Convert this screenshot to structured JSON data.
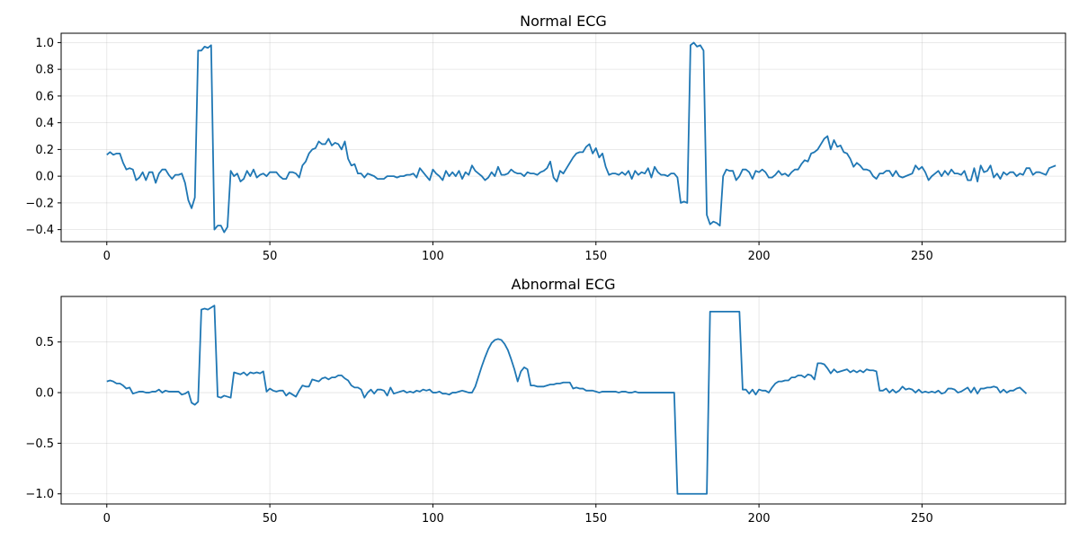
{
  "chart_data": [
    {
      "type": "line",
      "title": "Normal ECG",
      "xlabel": "",
      "ylabel": "",
      "grid": true,
      "xlim": [
        -14,
        294
      ],
      "ylim": [
        -0.49,
        1.07
      ],
      "xticks": [
        0,
        50,
        100,
        150,
        200,
        250
      ],
      "xtick_labels": [
        "0",
        "50",
        "100",
        "150",
        "200",
        "250"
      ],
      "yticks": [
        -0.4,
        -0.2,
        0.0,
        0.2,
        0.4,
        0.6,
        0.8,
        1.0
      ],
      "ytick_labels": [
        "−0.4",
        "−0.2",
        "0.0",
        "0.2",
        "0.4",
        "0.6",
        "0.8",
        "1.0"
      ],
      "series": [
        {
          "color": "#1f77b4",
          "x_start": 0,
          "x_step": 1,
          "values": [
            0.16,
            0.18,
            0.16,
            0.17,
            0.17,
            0.1,
            0.05,
            0.06,
            0.05,
            -0.03,
            -0.01,
            0.03,
            -0.03,
            0.03,
            0.03,
            -0.05,
            0.02,
            0.05,
            0.05,
            0.01,
            -0.02,
            0.01,
            0.01,
            0.02,
            -0.05,
            -0.18,
            -0.24,
            -0.16,
            0.94,
            0.94,
            0.97,
            0.96,
            0.98,
            -0.4,
            -0.37,
            -0.37,
            -0.42,
            -0.38,
            0.04,
            0.0,
            0.02,
            -0.04,
            -0.02,
            0.04,
            0.0,
            0.05,
            -0.01,
            0.01,
            0.02,
            0.0,
            0.03,
            0.03,
            0.03,
            0.0,
            -0.02,
            -0.02,
            0.03,
            0.03,
            0.02,
            -0.01,
            0.08,
            0.11,
            0.17,
            0.2,
            0.21,
            0.26,
            0.24,
            0.24,
            0.28,
            0.23,
            0.25,
            0.24,
            0.2,
            0.26,
            0.13,
            0.08,
            0.09,
            0.02,
            0.02,
            -0.01,
            0.02,
            0.01,
            0.0,
            -0.02,
            -0.02,
            -0.02,
            0.0,
            0.0,
            0.0,
            -0.01,
            0.0,
            0.0,
            0.01,
            0.01,
            0.02,
            -0.01,
            0.06,
            0.03,
            0.0,
            -0.03,
            0.05,
            0.02,
            0.0,
            -0.03,
            0.04,
            0.0,
            0.03,
            0.0,
            0.04,
            -0.02,
            0.03,
            0.01,
            0.08,
            0.04,
            0.02,
            0.0,
            -0.03,
            -0.01,
            0.03,
            0.0,
            0.07,
            0.01,
            0.01,
            0.02,
            0.05,
            0.03,
            0.02,
            0.02,
            0.0,
            0.03,
            0.02,
            0.02,
            0.01,
            0.03,
            0.04,
            0.06,
            0.11,
            -0.01,
            -0.04,
            0.04,
            0.02,
            0.06,
            0.1,
            0.14,
            0.17,
            0.18,
            0.18,
            0.22,
            0.24,
            0.17,
            0.21,
            0.14,
            0.17,
            0.07,
            0.01,
            0.02,
            0.02,
            0.01,
            0.03,
            0.01,
            0.04,
            -0.02,
            0.04,
            0.01,
            0.03,
            0.02,
            0.06,
            -0.01,
            0.07,
            0.03,
            0.01,
            0.01,
            0.0,
            0.02,
            0.02,
            -0.01,
            -0.2,
            -0.19,
            -0.2,
            0.98,
            1.0,
            0.97,
            0.98,
            0.94,
            -0.29,
            -0.36,
            -0.34,
            -0.35,
            -0.37,
            0.0,
            0.05,
            0.04,
            0.04,
            -0.03,
            0.0,
            0.05,
            0.05,
            0.03,
            -0.02,
            0.04,
            0.03,
            0.05,
            0.03,
            -0.01,
            -0.01,
            0.01,
            0.04,
            0.01,
            0.02,
            0.0,
            0.03,
            0.05,
            0.05,
            0.09,
            0.12,
            0.11,
            0.17,
            0.18,
            0.2,
            0.24,
            0.28,
            0.3,
            0.2,
            0.27,
            0.22,
            0.23,
            0.18,
            0.17,
            0.13,
            0.07,
            0.1,
            0.08,
            0.05,
            0.05,
            0.04,
            0.0,
            -0.02,
            0.02,
            0.02,
            0.04,
            0.04,
            0.0,
            0.04,
            0.0,
            -0.01,
            0.0,
            0.01,
            0.02,
            0.08,
            0.05,
            0.07,
            0.03,
            -0.03,
            0.0,
            0.02,
            0.04,
            0.0,
            0.04,
            0.01,
            0.05,
            0.02,
            0.02,
            0.01,
            0.04,
            -0.03,
            -0.03,
            0.06,
            -0.04,
            0.08,
            0.03,
            0.04,
            0.08,
            -0.01,
            0.02,
            -0.02,
            0.03,
            0.01,
            0.03,
            0.03,
            0.0,
            0.02,
            0.01,
            0.06,
            0.06,
            0.01,
            0.03,
            0.03,
            0.02,
            0.01,
            0.06,
            0.07,
            0.08
          ]
        }
      ]
    },
    {
      "type": "line",
      "title": "Abnormal ECG",
      "xlabel": "",
      "ylabel": "",
      "grid": true,
      "xlim": [
        -14,
        294
      ],
      "ylim": [
        -1.1,
        0.95
      ],
      "xticks": [
        0,
        50,
        100,
        150,
        200,
        250
      ],
      "xtick_labels": [
        "0",
        "50",
        "100",
        "150",
        "200",
        "250"
      ],
      "yticks": [
        -1.0,
        -0.5,
        0.0,
        0.5
      ],
      "ytick_labels": [
        "−1.0",
        "−0.5",
        "0.0",
        "0.5"
      ],
      "series": [
        {
          "color": "#1f77b4",
          "x_start": 0,
          "x_step": 1,
          "values": [
            0.11,
            0.12,
            0.11,
            0.09,
            0.09,
            0.07,
            0.04,
            0.05,
            -0.01,
            0.0,
            0.01,
            0.01,
            0.0,
            0.0,
            0.01,
            0.01,
            0.03,
            0.0,
            0.02,
            0.01,
            0.01,
            0.01,
            0.01,
            -0.02,
            -0.01,
            0.01,
            -0.1,
            -0.12,
            -0.09,
            0.82,
            0.83,
            0.82,
            0.84,
            0.86,
            -0.04,
            -0.05,
            -0.03,
            -0.04,
            -0.05,
            0.2,
            0.19,
            0.18,
            0.2,
            0.17,
            0.2,
            0.19,
            0.2,
            0.19,
            0.21,
            0.01,
            0.04,
            0.02,
            0.01,
            0.02,
            0.02,
            -0.03,
            0.0,
            -0.02,
            -0.04,
            0.02,
            0.07,
            0.06,
            0.06,
            0.13,
            0.12,
            0.11,
            0.14,
            0.15,
            0.13,
            0.15,
            0.15,
            0.17,
            0.17,
            0.14,
            0.12,
            0.07,
            0.05,
            0.05,
            0.03,
            -0.05,
            0.0,
            0.03,
            -0.01,
            0.03,
            0.03,
            0.02,
            -0.03,
            0.05,
            -0.01,
            0.0,
            0.01,
            0.02,
            0.0,
            0.01,
            0.0,
            0.02,
            0.01,
            0.03,
            0.02,
            0.03,
            0.0,
            0.0,
            0.01,
            -0.01,
            -0.01,
            -0.02,
            0.0,
            0.0,
            0.01,
            0.02,
            0.01,
            0.0,
            0.0,
            0.06,
            0.16,
            0.26,
            0.35,
            0.43,
            0.49,
            0.52,
            0.53,
            0.52,
            0.48,
            0.42,
            0.33,
            0.23,
            0.11,
            0.21,
            0.25,
            0.23,
            0.07,
            0.07,
            0.06,
            0.06,
            0.06,
            0.07,
            0.08,
            0.08,
            0.09,
            0.09,
            0.1,
            0.1,
            0.1,
            0.04,
            0.05,
            0.04,
            0.04,
            0.02,
            0.02,
            0.02,
            0.01,
            0.0,
            0.01,
            0.01,
            0.01,
            0.01,
            0.01,
            0.0,
            0.01,
            0.01,
            0.0,
            0.0,
            0.01,
            0.0,
            0.0,
            0.0,
            0.0,
            0.0,
            0.0,
            0.0,
            0.0,
            0.0,
            0.0,
            0.0,
            0.0,
            -1.0,
            -1.0,
            -1.0,
            -1.0,
            -1.0,
            -1.0,
            -1.0,
            -1.0,
            -1.0,
            -1.0,
            0.8,
            0.8,
            0.8,
            0.8,
            0.8,
            0.8,
            0.8,
            0.8,
            0.8,
            0.8,
            0.03,
            0.03,
            -0.01,
            0.03,
            -0.02,
            0.03,
            0.02,
            0.02,
            0.0,
            0.05,
            0.09,
            0.11,
            0.11,
            0.12,
            0.12,
            0.15,
            0.15,
            0.17,
            0.17,
            0.15,
            0.18,
            0.17,
            0.13,
            0.29,
            0.29,
            0.28,
            0.24,
            0.19,
            0.23,
            0.2,
            0.21,
            0.22,
            0.23,
            0.2,
            0.22,
            0.2,
            0.22,
            0.2,
            0.23,
            0.22,
            0.22,
            0.21,
            0.02,
            0.02,
            0.04,
            0.0,
            0.03,
            0.0,
            0.02,
            0.06,
            0.03,
            0.04,
            0.03,
            0.0,
            0.03,
            0.0,
            0.01,
            0.0,
            0.01,
            0.0,
            0.02,
            -0.01,
            0.0,
            0.04,
            0.04,
            0.03,
            0.0,
            0.01,
            0.03,
            0.05,
            0.0,
            0.05,
            -0.01,
            0.04,
            0.04,
            0.05,
            0.05,
            0.06,
            0.05,
            0.0,
            0.03,
            0.0,
            0.02,
            0.02,
            0.04,
            0.05,
            0.02,
            -0.01
          ]
        }
      ]
    }
  ]
}
